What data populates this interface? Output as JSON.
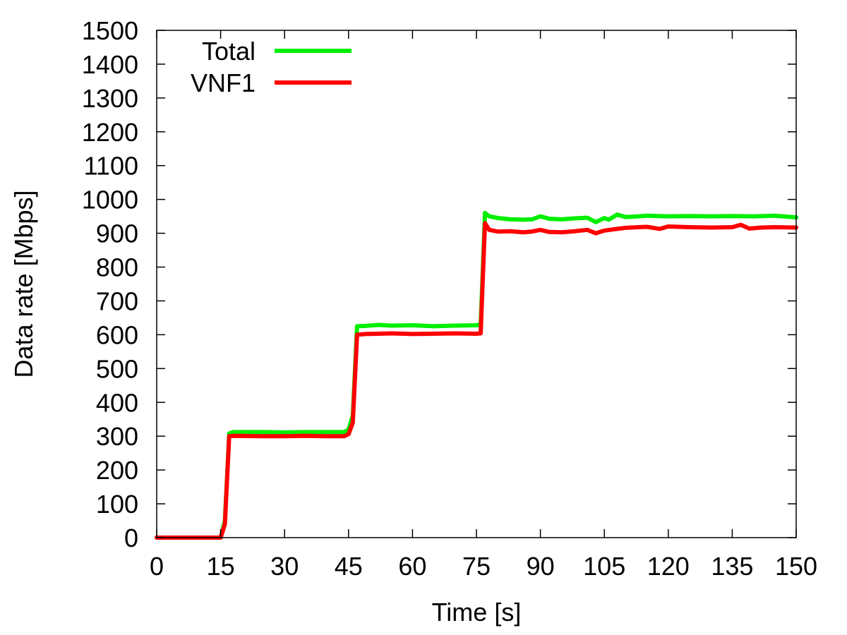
{
  "chart_data": {
    "type": "line",
    "title": "",
    "xlabel": "Time [s]",
    "ylabel": "Data rate [Mbps]",
    "xlim": [
      0,
      150
    ],
    "ylim": [
      0,
      1500
    ],
    "xticks": [
      0,
      15,
      30,
      45,
      60,
      75,
      90,
      105,
      120,
      135,
      150
    ],
    "yticks": [
      0,
      100,
      200,
      300,
      400,
      500,
      600,
      700,
      800,
      900,
      1000,
      1100,
      1200,
      1300,
      1400,
      1500
    ],
    "xtick_labels": [
      "0",
      "15",
      "30",
      "45",
      "60",
      "75",
      "90",
      "105",
      "120",
      "135",
      "150"
    ],
    "ytick_labels": [
      "0",
      "100",
      "200",
      "300",
      "400",
      "500",
      "600",
      "700",
      "800",
      "900",
      "1000",
      "1100",
      "1200",
      "1300",
      "1400",
      "1500"
    ],
    "grid": false,
    "legend_position": "top-left",
    "series": [
      {
        "name": "Total",
        "color": "#00ee00",
        "points": [
          [
            0,
            0
          ],
          [
            15,
            0
          ],
          [
            16,
            50
          ],
          [
            17,
            308
          ],
          [
            18,
            312
          ],
          [
            25,
            312
          ],
          [
            30,
            311
          ],
          [
            35,
            312
          ],
          [
            40,
            312
          ],
          [
            44,
            312
          ],
          [
            45,
            320
          ],
          [
            46,
            360
          ],
          [
            47,
            625
          ],
          [
            49,
            626
          ],
          [
            52,
            629
          ],
          [
            55,
            627
          ],
          [
            60,
            628
          ],
          [
            65,
            625
          ],
          [
            70,
            627
          ],
          [
            75,
            628
          ],
          [
            76,
            630
          ],
          [
            77,
            960
          ],
          [
            78,
            950
          ],
          [
            80,
            945
          ],
          [
            83,
            941
          ],
          [
            86,
            940
          ],
          [
            88,
            941
          ],
          [
            90,
            950
          ],
          [
            92,
            943
          ],
          [
            95,
            941
          ],
          [
            98,
            944
          ],
          [
            101,
            946
          ],
          [
            103,
            933
          ],
          [
            105,
            945
          ],
          [
            106,
            940
          ],
          [
            108,
            955
          ],
          [
            110,
            948
          ],
          [
            113,
            950
          ],
          [
            115,
            952
          ],
          [
            120,
            950
          ],
          [
            125,
            951
          ],
          [
            130,
            950
          ],
          [
            135,
            951
          ],
          [
            140,
            950
          ],
          [
            145,
            952
          ],
          [
            150,
            947
          ]
        ]
      },
      {
        "name": "VNF1",
        "color": "#ff0000",
        "points": [
          [
            0,
            0
          ],
          [
            15,
            0
          ],
          [
            16,
            40
          ],
          [
            17,
            300
          ],
          [
            18,
            301
          ],
          [
            25,
            300
          ],
          [
            30,
            300
          ],
          [
            35,
            301
          ],
          [
            40,
            300
          ],
          [
            44,
            300
          ],
          [
            45,
            306
          ],
          [
            46,
            340
          ],
          [
            47,
            600
          ],
          [
            49,
            602
          ],
          [
            52,
            603
          ],
          [
            55,
            604
          ],
          [
            60,
            602
          ],
          [
            65,
            603
          ],
          [
            70,
            604
          ],
          [
            75,
            603
          ],
          [
            76,
            604
          ],
          [
            77,
            930
          ],
          [
            78,
            910
          ],
          [
            80,
            905
          ],
          [
            83,
            906
          ],
          [
            86,
            903
          ],
          [
            88,
            905
          ],
          [
            90,
            910
          ],
          [
            92,
            904
          ],
          [
            95,
            903
          ],
          [
            98,
            906
          ],
          [
            101,
            910
          ],
          [
            103,
            900
          ],
          [
            105,
            908
          ],
          [
            108,
            913
          ],
          [
            110,
            916
          ],
          [
            113,
            918
          ],
          [
            115,
            919
          ],
          [
            118,
            913
          ],
          [
            120,
            920
          ],
          [
            125,
            918
          ],
          [
            130,
            917
          ],
          [
            135,
            918
          ],
          [
            137,
            925
          ],
          [
            139,
            914
          ],
          [
            142,
            917
          ],
          [
            145,
            918
          ],
          [
            150,
            917
          ]
        ]
      }
    ]
  }
}
